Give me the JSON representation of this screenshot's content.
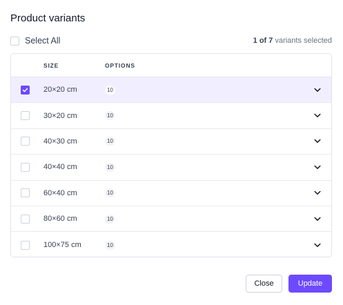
{
  "dialog": {
    "title": "Product variants",
    "select_all_label": "Select All",
    "selected_count_bold": "1 of 7",
    "selected_count_rest": " variants selected"
  },
  "table": {
    "columns": [
      "SIZE",
      "OPTIONS"
    ],
    "rows": [
      {
        "size": "20×20 cm",
        "options": "10",
        "selected": true
      },
      {
        "size": "30×20 cm",
        "options": "10",
        "selected": false
      },
      {
        "size": "40×30 cm",
        "options": "10",
        "selected": false
      },
      {
        "size": "40×40 cm",
        "options": "10",
        "selected": false
      },
      {
        "size": "60×40 cm",
        "options": "10",
        "selected": false
      },
      {
        "size": "80×60 cm",
        "options": "10",
        "selected": false
      },
      {
        "size": "100×75 cm",
        "options": "10",
        "selected": false
      }
    ]
  },
  "buttons": {
    "close_label": "Close",
    "update_label": "Update"
  },
  "colors": {
    "accent": "#6d4aff",
    "selected_row_bg": "#f1efff"
  }
}
